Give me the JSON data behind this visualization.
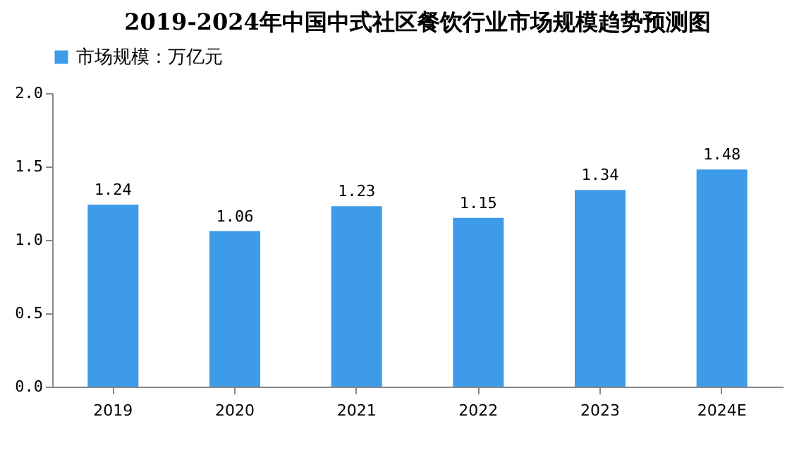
{
  "chart_data": {
    "type": "bar",
    "title": "2019-2024年中国中式社区餐饮行业市场规模趋势预测图",
    "categories": [
      "2019",
      "2020",
      "2021",
      "2022",
      "2023",
      "2024E"
    ],
    "series": [
      {
        "name": "市场规模：万亿元",
        "color": "#3d9be9",
        "values": [
          1.24,
          1.06,
          1.23,
          1.15,
          1.34,
          1.48
        ]
      }
    ],
    "ylim": [
      0,
      2.0
    ],
    "yticks": [
      {
        "value": 0,
        "label": "0.0"
      },
      {
        "value": 0.5,
        "label": "0.5"
      },
      {
        "value": 1,
        "label": "1.0"
      },
      {
        "value": 1.5,
        "label": "1.5"
      },
      {
        "value": 2,
        "label": "2.0"
      }
    ],
    "data_labels": true,
    "legend": "top",
    "grid": false
  }
}
